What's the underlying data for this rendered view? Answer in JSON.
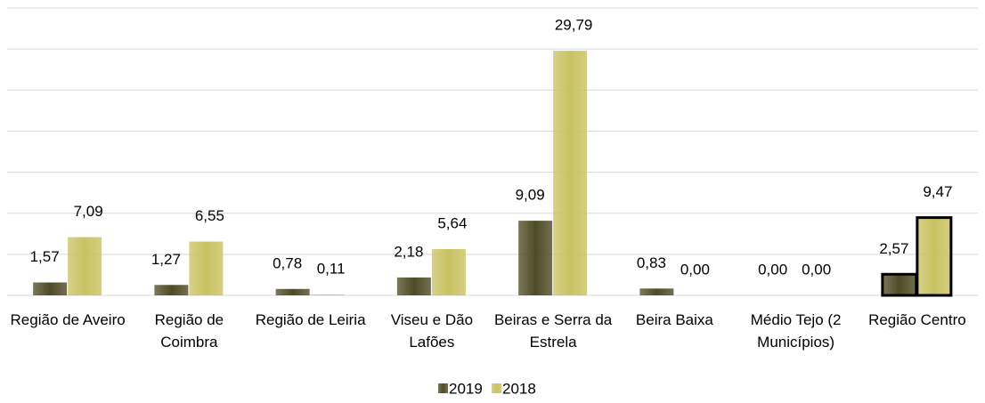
{
  "chart_data": {
    "type": "bar",
    "categories": [
      "Região de Aveiro",
      "Região de Coimbra",
      "Região de Leiria",
      "Viseu e Dão Lafões",
      "Beiras e Serra da Estrela",
      "Beira Baixa",
      "Médio Tejo (2 Municípios)",
      "Região Centro"
    ],
    "series": [
      {
        "name": "2019",
        "color": "#4f4b26",
        "values": [
          1.57,
          1.27,
          0.78,
          2.18,
          9.09,
          0.83,
          0.0,
          2.57
        ],
        "value_labels": [
          "1,57",
          "1,27",
          "0,78",
          "2,18",
          "9,09",
          "0,83",
          "0,00",
          "2,57"
        ]
      },
      {
        "name": "2018",
        "color": "#c9c262",
        "values": [
          7.09,
          6.55,
          0.11,
          5.64,
          29.79,
          0.0,
          0.0,
          9.47
        ],
        "value_labels": [
          "7,09",
          "6,55",
          "0,11",
          "5,64",
          "29,79",
          "0,00",
          "0,00",
          "9,47"
        ]
      }
    ],
    "ylim": [
      0,
      35
    ],
    "yticks": [
      0,
      5,
      10,
      15,
      20,
      25,
      30,
      35
    ],
    "grid": true,
    "legend": "bottom"
  }
}
